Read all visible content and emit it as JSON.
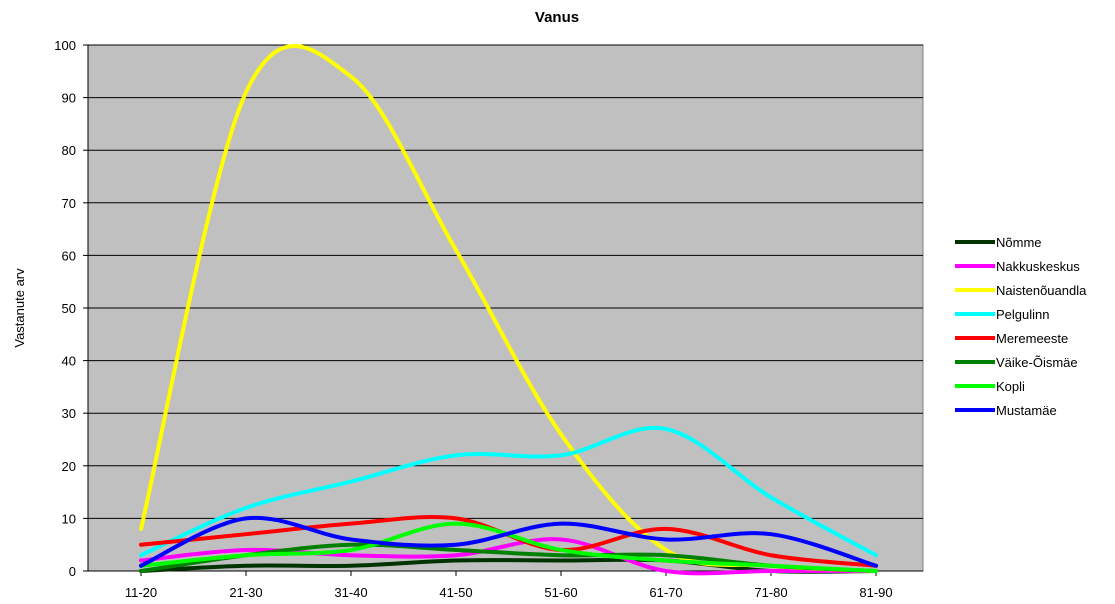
{
  "chart_data": {
    "type": "line",
    "title": "Vanus",
    "xlabel": "",
    "ylabel": "Vastanute arv",
    "categories": [
      "11-20",
      "21-30",
      "31-40",
      "41-50",
      "51-60",
      "61-70",
      "71-80",
      "81-90"
    ],
    "ylim": [
      0,
      100
    ],
    "yticks": [
      0,
      10,
      20,
      30,
      40,
      50,
      60,
      70,
      80,
      90,
      100
    ],
    "grid": true,
    "plot_background": "#c0c0c0",
    "legend_position": "right",
    "series": [
      {
        "name": "Nõmme",
        "color": "#003300",
        "values": [
          0,
          1,
          1,
          2,
          2,
          2,
          0,
          0
        ]
      },
      {
        "name": "Nakkuskeskus",
        "color": "#ff00ff",
        "values": [
          2,
          4,
          3,
          3,
          6,
          0,
          0,
          0
        ]
      },
      {
        "name": "Naistenõuandla",
        "color": "#ffff00",
        "values": [
          8,
          91,
          94,
          61,
          26,
          4,
          1,
          0
        ]
      },
      {
        "name": "Pelgulinn",
        "color": "#00ffff",
        "values": [
          3,
          12,
          17,
          22,
          22,
          27,
          14,
          3
        ]
      },
      {
        "name": "Meremeeste",
        "color": "#ff0000",
        "values": [
          5,
          7,
          9,
          10,
          4,
          8,
          3,
          1
        ]
      },
      {
        "name": "Väike-Õismäe",
        "color": "#008000",
        "values": [
          0,
          3,
          5,
          4,
          3,
          3,
          1,
          0
        ]
      },
      {
        "name": "Kopli",
        "color": "#00ff00",
        "values": [
          1,
          3,
          4,
          9,
          4,
          2,
          1,
          0
        ]
      },
      {
        "name": "Mustamäe",
        "color": "#0000ff",
        "values": [
          1,
          10,
          6,
          5,
          9,
          6,
          7,
          1
        ]
      }
    ]
  }
}
